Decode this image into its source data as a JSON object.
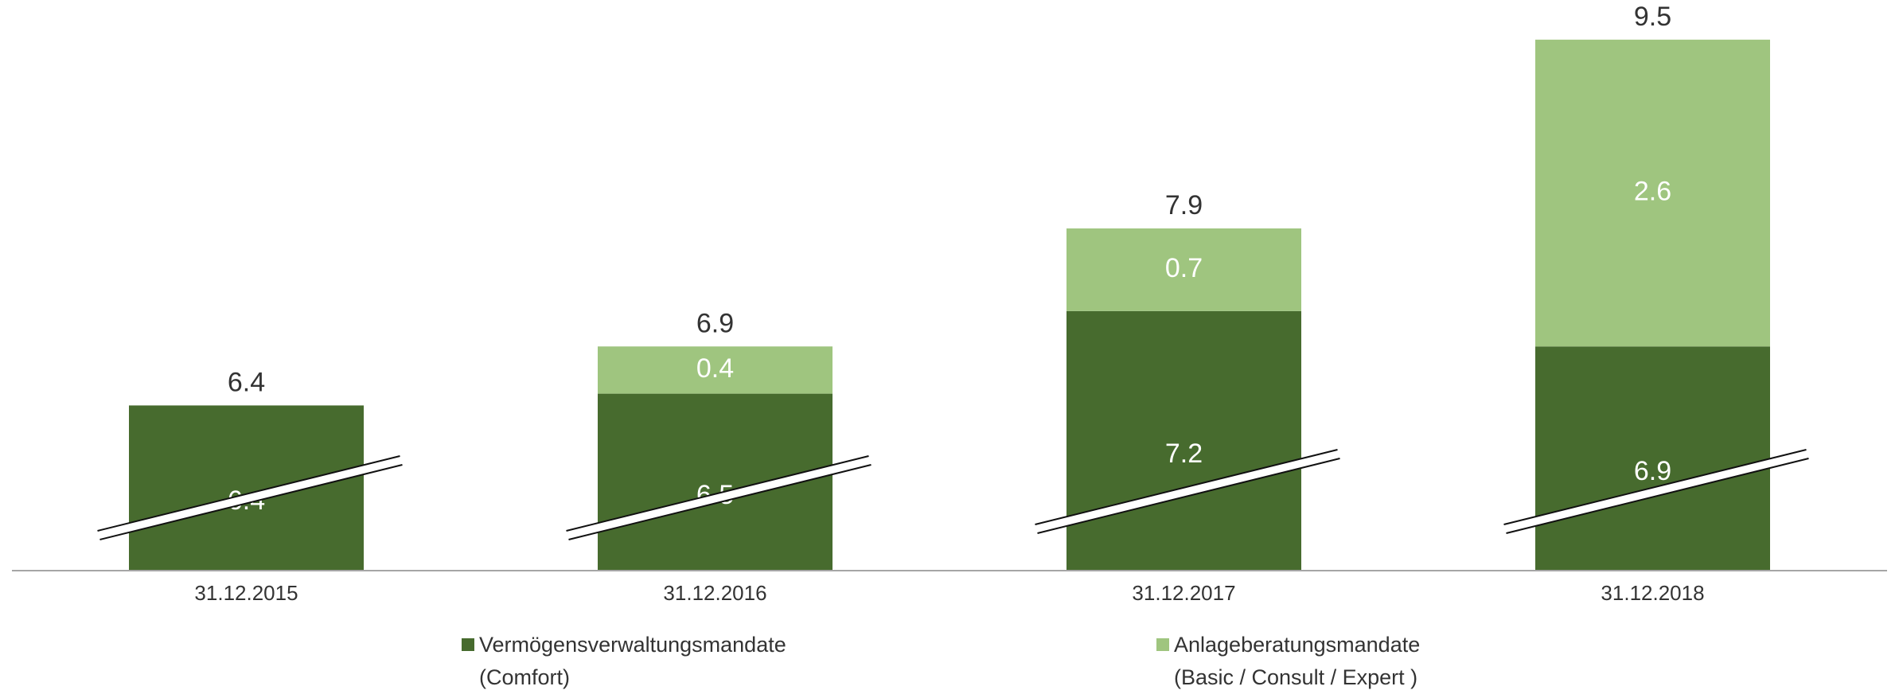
{
  "chart_data": {
    "type": "stacked_bar",
    "categories": [
      "31.12.2015",
      "31.12.2016",
      "31.12.2017",
      "31.12.2018"
    ],
    "series": [
      {
        "name": "Vermögensverwaltungsmandate\n(Comfort)",
        "color": "#476b2e",
        "values": [
          6.4,
          6.5,
          7.2,
          6.9
        ]
      },
      {
        "name": "Anlageberatungsmandate\n(Basic / Consult / Expert )",
        "color": "#9fc57f",
        "values": [
          null,
          0.4,
          0.7,
          2.6
        ]
      }
    ],
    "totals": [
      6.4,
      6.9,
      7.9,
      9.5
    ],
    "ylim": [
      5,
      9.6
    ],
    "axis_break": true
  }
}
